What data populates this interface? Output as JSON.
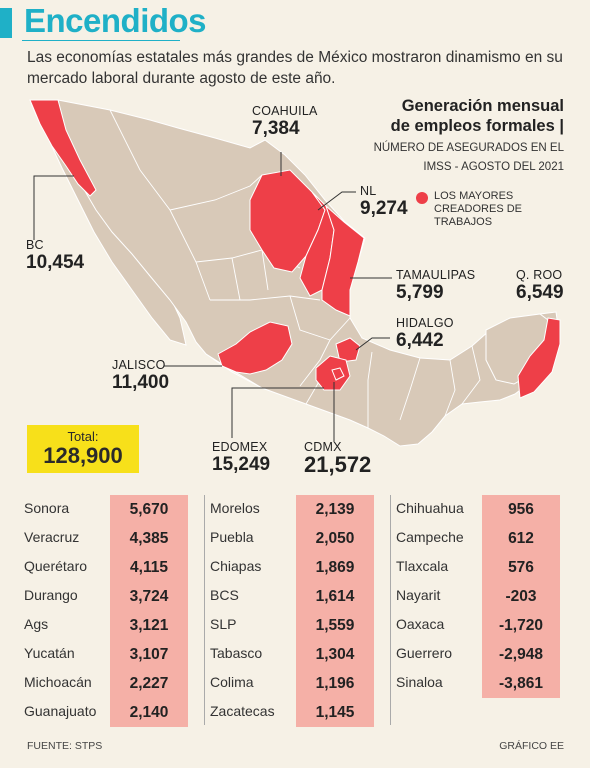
{
  "header": {
    "title": "Encendidos",
    "subtitle": "Las economías estatales más grandes de México mostraron dinamismo en su mercado laboral durante agosto de este año."
  },
  "legend": {
    "title_line1": "Generación mensual",
    "title_line2": "de empleos formales |",
    "sub_line1": "NÚMERO DE ASEGURADOS EN EL",
    "sub_line2": "IMSS - AGOSTO DEL 2021",
    "key_label_line1": "LOS MAYORES",
    "key_label_line2": "CREADORES DE",
    "key_label_line3": "TRABAJOS",
    "key_color": "#ee3f48"
  },
  "colors": {
    "highlight": "#ee3f48",
    "base_state": "#d8c9b8",
    "title": "#1fb0c7",
    "table_cell": "#f5b0a7",
    "total_box": "#f7e01a"
  },
  "map_labels": {
    "bc": {
      "name": "BC",
      "value": "10,454"
    },
    "coahuila": {
      "name": "COAHUILA",
      "value": "7,384"
    },
    "nl": {
      "name": "NL",
      "value": "9,274"
    },
    "tamaulipas": {
      "name": "TAMAULIPAS",
      "value": "5,799"
    },
    "qroo": {
      "name": "Q. ROO",
      "value": "6,549"
    },
    "hidalgo": {
      "name": "HIDALGO",
      "value": "6,442"
    },
    "jalisco": {
      "name": "JALISCO",
      "value": "11,400"
    },
    "edomex": {
      "name": "EDOMEX",
      "value": "15,249"
    },
    "cdmx": {
      "name": "CDMX",
      "value": "21,572"
    }
  },
  "total": {
    "label": "Total:",
    "value": "128,900"
  },
  "table": {
    "col1": [
      {
        "state": "Sonora",
        "value": "5,670"
      },
      {
        "state": "Veracruz",
        "value": "4,385"
      },
      {
        "state": "Querétaro",
        "value": "4,115"
      },
      {
        "state": "Durango",
        "value": "3,724"
      },
      {
        "state": "Ags",
        "value": "3,121"
      },
      {
        "state": "Yucatán",
        "value": "3,107"
      },
      {
        "state": "Michoacán",
        "value": "2,227"
      },
      {
        "state": "Guanajuato",
        "value": "2,140"
      }
    ],
    "col2": [
      {
        "state": "Morelos",
        "value": "2,139"
      },
      {
        "state": "Puebla",
        "value": "2,050"
      },
      {
        "state": "Chiapas",
        "value": "1,869"
      },
      {
        "state": "BCS",
        "value": "1,614"
      },
      {
        "state": "SLP",
        "value": "1,559"
      },
      {
        "state": "Tabasco",
        "value": "1,304"
      },
      {
        "state": "Colima",
        "value": "1,196"
      },
      {
        "state": "Zacatecas",
        "value": "1,145"
      }
    ],
    "col3": [
      {
        "state": "Chihuahua",
        "value": "956"
      },
      {
        "state": "Campeche",
        "value": "612"
      },
      {
        "state": "Tlaxcala",
        "value": "576"
      },
      {
        "state": "Nayarit",
        "value": "-203"
      },
      {
        "state": "Oaxaca",
        "value": "-1,720"
      },
      {
        "state": "Guerrero",
        "value": "-2,948"
      },
      {
        "state": "Sinaloa",
        "value": "-3,861"
      }
    ]
  },
  "footer": {
    "source": "FUENTE: STPS",
    "credit": "GRÁFICO EE"
  }
}
